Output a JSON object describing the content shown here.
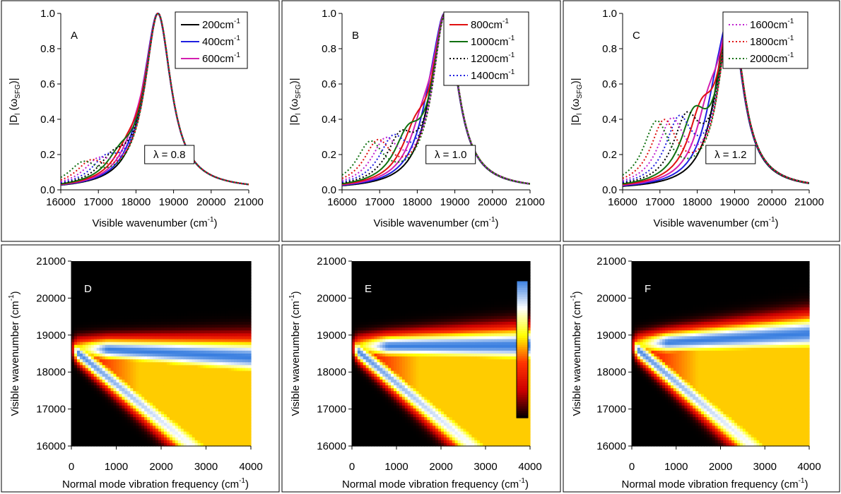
{
  "chart_data": [
    {
      "id": "A",
      "type": "line",
      "panel_label": "A",
      "xlabel": "Visible wavenumber (cm",
      "xlabel_sup": "-1",
      "xlabel_end": ")",
      "ylabel": "|D",
      "ylabel_sub": "l",
      "ylabel_mid": " (ω",
      "ylabel_sub2": "SFG",
      "ylabel_end": ")|",
      "xlim": [
        16000,
        21000
      ],
      "ylim": [
        0,
        1.0
      ],
      "xticks": [
        "16000",
        "17000",
        "18000",
        "19000",
        "20000",
        "21000"
      ],
      "yticks": [
        "0.0",
        "0.2",
        "0.4",
        "0.6",
        "0.8",
        "1.0"
      ],
      "annotation": "λ = 0.8",
      "lambda": 0.8,
      "legend_position": "top-right",
      "series": [
        {
          "name": "200cm",
          "name_sup": "-1",
          "omega": 200,
          "color": "#000000",
          "dash": false,
          "legend": true
        },
        {
          "name": "400cm",
          "name_sup": "-1",
          "omega": 400,
          "color": "#1f1fe0",
          "dash": false,
          "legend": true
        },
        {
          "name": "600cm",
          "name_sup": "-1",
          "omega": 600,
          "color": "#d41fb0",
          "dash": false,
          "legend": true
        },
        {
          "omega": 800,
          "color": "#e01010",
          "dash": false,
          "legend": false
        },
        {
          "omega": 1000,
          "color": "#107010",
          "dash": false,
          "legend": false
        },
        {
          "omega": 1200,
          "color": "#000000",
          "dash": true,
          "legend": false
        },
        {
          "omega": 1400,
          "color": "#1f1fe0",
          "dash": true,
          "legend": false
        },
        {
          "omega": 1600,
          "color": "#c020d0",
          "dash": true,
          "legend": false
        },
        {
          "omega": 1800,
          "color": "#e01010",
          "dash": true,
          "legend": false
        },
        {
          "omega": 2000,
          "color": "#107010",
          "dash": true,
          "legend": false
        }
      ]
    },
    {
      "id": "B",
      "type": "line",
      "panel_label": "B",
      "xlabel": "Visible wavenumber (cm",
      "xlabel_sup": "-1",
      "xlabel_end": ")",
      "ylabel": "|D",
      "ylabel_sub": "l",
      "ylabel_mid": " (ω",
      "ylabel_sub2": "SFG",
      "ylabel_end": ")|",
      "xlim": [
        16000,
        21000
      ],
      "ylim": [
        0,
        1.0
      ],
      "xticks": [
        "16000",
        "17000",
        "18000",
        "19000",
        "20000",
        "21000"
      ],
      "yticks": [
        "0.0",
        "0.2",
        "0.4",
        "0.6",
        "0.8",
        "1.0"
      ],
      "annotation": "λ = 1.0",
      "lambda": 1.0,
      "legend_position": "top-right",
      "series": [
        {
          "omega": 200,
          "color": "#000000",
          "dash": false,
          "legend": false
        },
        {
          "omega": 400,
          "color": "#1f1fe0",
          "dash": false,
          "legend": false
        },
        {
          "omega": 600,
          "color": "#d41fb0",
          "dash": false,
          "legend": false
        },
        {
          "name": "800cm",
          "name_sup": "-1",
          "omega": 800,
          "color": "#e01010",
          "dash": false,
          "legend": true
        },
        {
          "name": "1000cm",
          "name_sup": "-1",
          "omega": 1000,
          "color": "#107010",
          "dash": false,
          "legend": true
        },
        {
          "name": "1200cm",
          "name_sup": "-1",
          "omega": 1200,
          "color": "#000000",
          "dash": true,
          "legend": true
        },
        {
          "name": "1400cm",
          "name_sup": "-1",
          "omega": 1400,
          "color": "#1f1fe0",
          "dash": true,
          "legend": true
        },
        {
          "omega": 1600,
          "color": "#c020d0",
          "dash": true,
          "legend": false
        },
        {
          "omega": 1800,
          "color": "#e01010",
          "dash": true,
          "legend": false
        },
        {
          "omega": 2000,
          "color": "#107010",
          "dash": true,
          "legend": false
        }
      ]
    },
    {
      "id": "C",
      "type": "line",
      "panel_label": "C",
      "xlabel": "Visible wavenumber (cm",
      "xlabel_sup": "-1",
      "xlabel_end": ")",
      "ylabel": "|D",
      "ylabel_sub": "l",
      "ylabel_mid": " (ω",
      "ylabel_sub2": "SFG",
      "ylabel_end": ")|",
      "xlim": [
        16000,
        21000
      ],
      "ylim": [
        0,
        1.0
      ],
      "xticks": [
        "16000",
        "17000",
        "18000",
        "19000",
        "20000",
        "21000"
      ],
      "yticks": [
        "0.0",
        "0.2",
        "0.4",
        "0.6",
        "0.8",
        "1.0"
      ],
      "annotation": "λ = 1.2",
      "lambda": 1.2,
      "legend_position": "top-right",
      "series": [
        {
          "omega": 200,
          "color": "#000000",
          "dash": false,
          "legend": false
        },
        {
          "omega": 400,
          "color": "#1f1fe0",
          "dash": false,
          "legend": false
        },
        {
          "omega": 600,
          "color": "#d41fb0",
          "dash": false,
          "legend": false
        },
        {
          "omega": 800,
          "color": "#e01010",
          "dash": false,
          "legend": false
        },
        {
          "omega": 1000,
          "color": "#107010",
          "dash": false,
          "legend": false
        },
        {
          "omega": 1200,
          "color": "#000000",
          "dash": true,
          "legend": false
        },
        {
          "omega": 1400,
          "color": "#1f1fe0",
          "dash": true,
          "legend": false
        },
        {
          "name": "1600cm",
          "name_sup": "-1",
          "omega": 1600,
          "color": "#c020d0",
          "dash": true,
          "legend": true
        },
        {
          "name": "1800cm",
          "name_sup": "-1",
          "omega": 1800,
          "color": "#e01010",
          "dash": true,
          "legend": true
        },
        {
          "name": "2000cm",
          "name_sup": "-1",
          "omega": 2000,
          "color": "#107010",
          "dash": true,
          "legend": true
        }
      ]
    },
    {
      "id": "D",
      "type": "heatmap",
      "panel_label": "D",
      "xlabel": "Normal mode vibration frequency (cm",
      "xlabel_sup": "-1",
      "xlabel_end": ")",
      "ylabel": "Visible wavenumber (cm",
      "ylabel_sup": "-1",
      "ylabel_end": ")",
      "xlim": [
        0,
        4000
      ],
      "ylim": [
        16000,
        21000
      ],
      "xticks": [
        "0",
        "1000",
        "2000",
        "3000",
        "4000"
      ],
      "yticks": [
        "16000",
        "17000",
        "18000",
        "19000",
        "20000",
        "21000"
      ],
      "lambda": 0.8,
      "colorscale": [
        "#000000",
        "#cc0000",
        "#ff3300",
        "#ffff00",
        "#ffffff",
        "#3a7fe0"
      ],
      "colorbar": false
    },
    {
      "id": "E",
      "type": "heatmap",
      "panel_label": "E",
      "xlabel": "Normal mode vibration frequency (cm",
      "xlabel_sup": "-1",
      "xlabel_end": ")",
      "ylabel": "Visible wavenumber (cm",
      "ylabel_sup": "-1",
      "ylabel_end": ")",
      "xlim": [
        0,
        4000
      ],
      "ylim": [
        16000,
        21000
      ],
      "xticks": [
        "0",
        "1000",
        "2000",
        "3000",
        "4000"
      ],
      "yticks": [
        "16000",
        "17000",
        "18000",
        "19000",
        "20000",
        "21000"
      ],
      "lambda": 1.0,
      "colorscale": [
        "#000000",
        "#cc0000",
        "#ff3300",
        "#ffff00",
        "#ffffff",
        "#3a7fe0"
      ],
      "colorbar": true
    },
    {
      "id": "F",
      "type": "heatmap",
      "panel_label": "F",
      "xlabel": "Normal mode vibration frequency (cm",
      "xlabel_sup": "-1",
      "xlabel_end": ")",
      "ylabel": "Visible wavenumber (cm",
      "ylabel_sup": "-1",
      "ylabel_end": ")",
      "xlim": [
        0,
        4000
      ],
      "ylim": [
        16000,
        21000
      ],
      "xticks": [
        "0",
        "1000",
        "2000",
        "3000",
        "4000"
      ],
      "yticks": [
        "16000",
        "17000",
        "18000",
        "19000",
        "20000",
        "21000"
      ],
      "lambda": 1.2,
      "colorscale": [
        "#000000",
        "#cc0000",
        "#ff3300",
        "#ffff00",
        "#ffffff",
        "#3a7fe0"
      ],
      "colorbar": false
    }
  ]
}
